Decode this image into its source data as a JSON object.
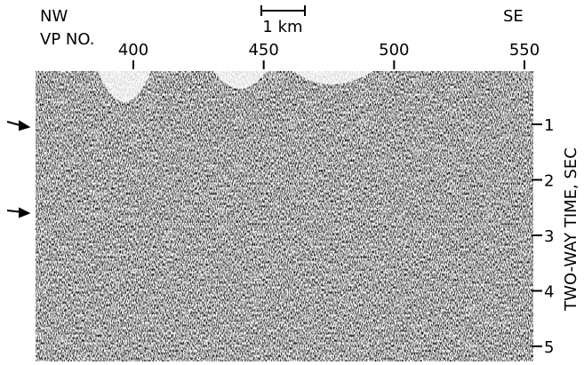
{
  "header": {
    "left_top": "NW",
    "left_bottom": "VP NO.",
    "right_top": "SE",
    "scale_bar": "1 km"
  },
  "x_axis": {
    "ticks": [
      400,
      450,
      500,
      550
    ]
  },
  "y_axis": {
    "label": "TWO-WAY TIME, SEC",
    "ticks": [
      1,
      2,
      3,
      4,
      5
    ]
  }
}
